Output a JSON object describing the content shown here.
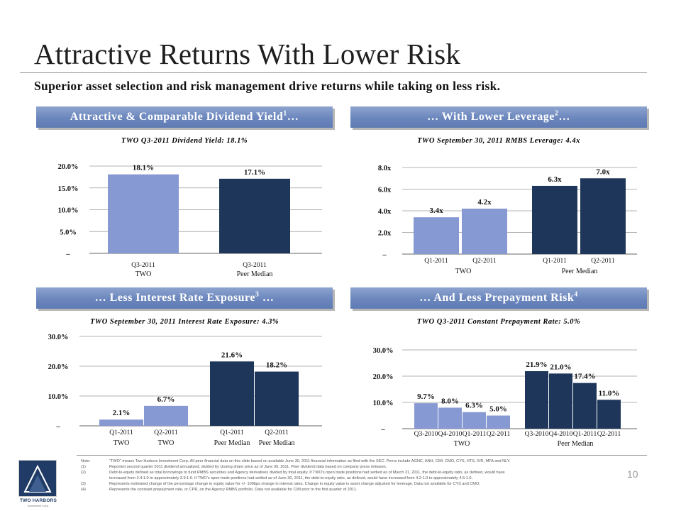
{
  "title": "Attractive Returns With Lower Risk",
  "subtitle": "Superior asset selection and risk management drive returns while taking on less risk.",
  "sections": {
    "dividend": {
      "header": "Attractive & Comparable Dividend Yield",
      "sup": "1",
      "suffix": "…"
    },
    "leverage": {
      "header": "… With Lower Leverage",
      "sup": "2",
      "suffix": "…"
    },
    "interest": {
      "header": "… Less Interest Rate Exposure",
      "sup": "3",
      "suffix": " …"
    },
    "prepay": {
      "header": "… And Less Prepayment Risk",
      "sup": "4",
      "suffix": ""
    }
  },
  "colors": {
    "light": "#8799d2",
    "dark": "#1d3659",
    "header": "#6b86bd"
  },
  "chart_data": [
    {
      "id": "dividend",
      "type": "bar",
      "title": "TWO Q3-2011 Dividend Yield: 18.1%",
      "categories": [
        "Q3-2011",
        "Q3-2011"
      ],
      "groups": [
        "TWO",
        "Peer Median"
      ],
      "values": [
        18.1,
        17.1
      ],
      "value_labels": [
        "18.1%",
        "17.1%"
      ],
      "colors": [
        "light",
        "dark"
      ],
      "ylim": [
        0,
        20
      ],
      "yticks": [
        0,
        5,
        10,
        15,
        20
      ],
      "ytick_labels": [
        "–",
        "5.0%",
        "10.0%",
        "15.0%",
        "20.0%"
      ]
    },
    {
      "id": "leverage",
      "type": "bar",
      "title": "TWO September 30, 2011 RMBS Leverage: 4.4x",
      "categories": [
        "Q1-2011",
        "Q2-2011",
        "Q1-2011",
        "Q2-2011"
      ],
      "groups": [
        "TWO",
        "Peer Median"
      ],
      "values": [
        3.4,
        4.2,
        6.3,
        7.0
      ],
      "value_labels": [
        "3.4x",
        "4.2x",
        "6.3x",
        "7.0x"
      ],
      "colors": [
        "light",
        "light",
        "dark",
        "dark"
      ],
      "ylim": [
        0,
        8
      ],
      "yticks": [
        0,
        2,
        4,
        6,
        8
      ],
      "ytick_labels": [
        "–",
        "2.0x",
        "4.0x",
        "6.0x",
        "8.0x"
      ]
    },
    {
      "id": "interest",
      "type": "bar",
      "title": "TWO September 30, 2011 Interest Rate Exposure: 4.3%",
      "categories": [
        "Q1-2011",
        "Q2-2011",
        "Q1-2011",
        "Q2-2011"
      ],
      "sub_labels": [
        "TWO",
        "TWO",
        "Peer Median",
        "Peer Median"
      ],
      "values": [
        2.1,
        6.7,
        21.6,
        18.2
      ],
      "value_labels": [
        "2.1%",
        "6.7%",
        "21.6%",
        "18.2%"
      ],
      "colors": [
        "light",
        "light",
        "dark",
        "dark"
      ],
      "ylim": [
        0,
        30
      ],
      "yticks": [
        0,
        10,
        20,
        30
      ],
      "ytick_labels": [
        "–",
        "10.0%",
        "20.0%",
        "30.0%"
      ]
    },
    {
      "id": "prepay",
      "type": "bar",
      "title": "TWO Q3-2011 Constant Prepayment Rate: 5.0%",
      "categories": [
        "Q3-2010",
        "Q4-2010",
        "Q1-2011",
        "Q2-2011",
        "Q3-2010",
        "Q4-2010",
        "Q1-2011",
        "Q2-2011"
      ],
      "groups": [
        "TWO",
        "Peer Median"
      ],
      "values": [
        9.7,
        8.0,
        6.3,
        5.0,
        21.9,
        21.0,
        17.4,
        11.0
      ],
      "value_labels": [
        "9.7%",
        "8.0%",
        "6.3%",
        "5.0%",
        "21.9%",
        "21.0%",
        "17.4%",
        "11.0%"
      ],
      "colors": [
        "light",
        "light",
        "light",
        "light",
        "dark",
        "dark",
        "dark",
        "dark"
      ],
      "ylim": [
        0,
        30
      ],
      "yticks": [
        0,
        10,
        20,
        30
      ],
      "ytick_labels": [
        "–",
        "10.0%",
        "20.0%",
        "30.0%"
      ]
    }
  ],
  "notes": [
    {
      "key": "Note:",
      "text": "“TWO” means Two Harbors Investment Corp. All peer financial data on this slide based on available June 30, 2011 financial information as filed with the SEC. Peers include AGNC, ANH, CIM, CMO, CYS, HTS, IVR, MFA and NLY."
    },
    {
      "key": "(1)",
      "text": "Reported second quarter 2011 dividend annualized, divided by closing share price as of June 30, 2011. Peer dividend data based on company press releases."
    },
    {
      "key": "(2)",
      "text": "Debt-to-equity defined as total borrowings to fund RMBS securities and Agency derivatives divided by total equity. If TWO's open trade positions had settled as of March 31, 2011, the debt-to-equity ratio, as defined, would have"
    },
    {
      "key": "",
      "text": "increased from 3.4:1.0 to approximately 3.9:1.0. If TWO's open trade positions had settled as of June 30, 2011, the debt-to-equity ratio, as defined, would have increased from 4.2:1.0 to approximately 4.5:1.0."
    },
    {
      "key": "(3)",
      "text": "Represents estimated change of the percentage change in equity value for +/- 100bps change in interest rates. Change in equity value is asset change adjusted for leverage. Data not available for CYS and CMO."
    },
    {
      "key": "(4)",
      "text": "Represents the constant prepayment rate, or CPR, on the Agency RMBS portfolio. Data not available for CIM prior to the first quarter of 2011."
    }
  ],
  "page_number": "10",
  "logo": {
    "name": "TWO HARBORS",
    "tagline": "Investment Corp."
  }
}
